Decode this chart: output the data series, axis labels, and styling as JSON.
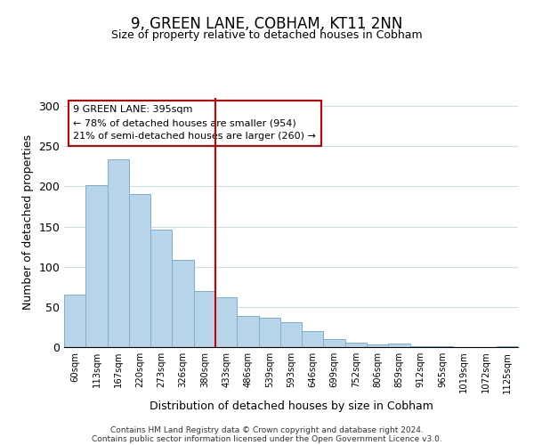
{
  "title": "9, GREEN LANE, COBHAM, KT11 2NN",
  "subtitle": "Size of property relative to detached houses in Cobham",
  "xlabel": "Distribution of detached houses by size in Cobham",
  "ylabel": "Number of detached properties",
  "bar_labels": [
    "60sqm",
    "113sqm",
    "167sqm",
    "220sqm",
    "273sqm",
    "326sqm",
    "380sqm",
    "433sqm",
    "486sqm",
    "539sqm",
    "593sqm",
    "646sqm",
    "699sqm",
    "752sqm",
    "806sqm",
    "859sqm",
    "912sqm",
    "965sqm",
    "1019sqm",
    "1072sqm",
    "1125sqm"
  ],
  "bar_values": [
    65,
    202,
    234,
    190,
    146,
    109,
    70,
    62,
    39,
    37,
    31,
    20,
    10,
    5,
    3,
    4,
    1,
    1,
    0,
    0,
    1
  ],
  "bar_color": "#b8d4e8",
  "bar_edge_color": "#7ab0d4",
  "vline_x": 6.5,
  "vline_color": "#cc0000",
  "annotation_title": "9 GREEN LANE: 395sqm",
  "annotation_line1": "← 78% of detached houses are smaller (954)",
  "annotation_line2": "21% of semi-detached houses are larger (260) →",
  "annotation_box_color": "#ffffff",
  "annotation_box_edge": "#cc0000",
  "ylim": [
    0,
    310
  ],
  "footer1": "Contains HM Land Registry data © Crown copyright and database right 2024.",
  "footer2": "Contains public sector information licensed under the Open Government Licence v3.0."
}
